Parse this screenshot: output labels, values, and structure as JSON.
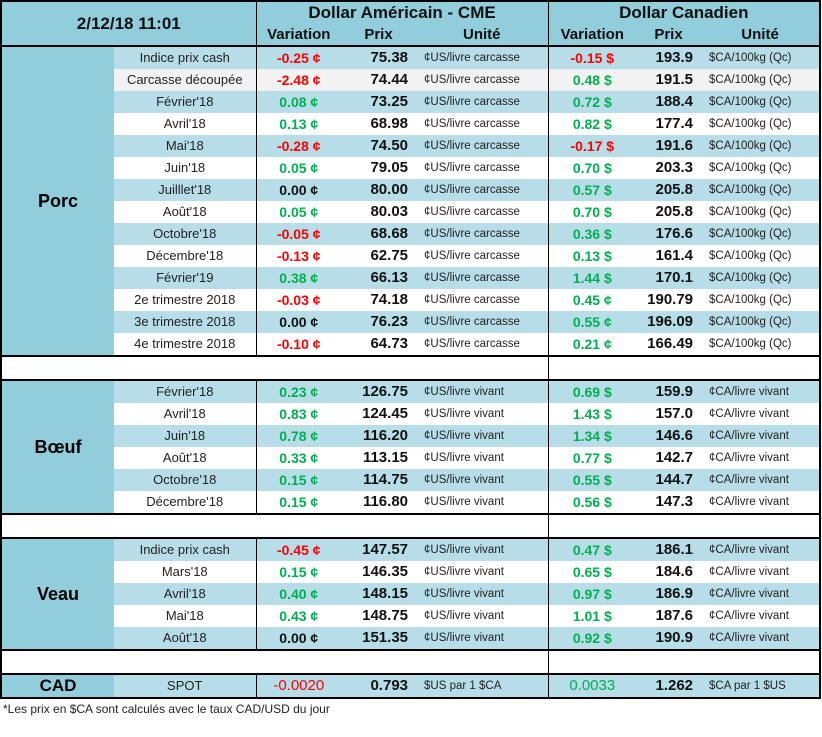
{
  "header": {
    "datetime": "2/12/18 11:01",
    "usd_title": "Dollar Américain - CME",
    "cad_title": "Dollar Canadien",
    "col_variation": "Variation",
    "col_prix": "Prix",
    "col_unite": "Unité"
  },
  "colors": {
    "header": "#92cddc",
    "row_light": "#b7dee8",
    "negative": "#ff0000",
    "positive": "#00b050"
  },
  "groups": [
    {
      "name": "Porc",
      "rows": [
        {
          "label": "Indice prix cash",
          "usd_var": "-0.25 ¢",
          "usd_prix": "75.38",
          "usd_unit": "¢US/livre carcasse",
          "cad_var": "-0.15 $",
          "cad_prix": "193.9",
          "cad_unit": "$CA/100kg (Qc)"
        },
        {
          "label": "Carcasse découpée",
          "usd_var": "-2.48 ¢",
          "usd_prix": "74.44",
          "usd_unit": "¢US/livre carcasse",
          "cad_var": "0.48 $",
          "cad_prix": "191.5",
          "cad_unit": "$CA/100kg (Qc)"
        },
        {
          "label": "Février'18",
          "usd_var": "0.08 ¢",
          "usd_prix": "73.25",
          "usd_unit": "¢US/livre carcasse",
          "cad_var": "0.72 $",
          "cad_prix": "188.4",
          "cad_unit": "$CA/100kg (Qc)"
        },
        {
          "label": "Avril'18",
          "usd_var": "0.13 ¢",
          "usd_prix": "68.98",
          "usd_unit": "¢US/livre carcasse",
          "cad_var": "0.82 $",
          "cad_prix": "177.4",
          "cad_unit": "$CA/100kg (Qc)"
        },
        {
          "label": "Mai'18",
          "usd_var": "-0.28 ¢",
          "usd_prix": "74.50",
          "usd_unit": "¢US/livre carcasse",
          "cad_var": "-0.17 $",
          "cad_prix": "191.6",
          "cad_unit": "$CA/100kg (Qc)"
        },
        {
          "label": "Juin'18",
          "usd_var": "0.05 ¢",
          "usd_prix": "79.05",
          "usd_unit": "¢US/livre carcasse",
          "cad_var": "0.70 $",
          "cad_prix": "203.3",
          "cad_unit": "$CA/100kg (Qc)"
        },
        {
          "label": "Juilllet'18",
          "usd_var": "0.00 ¢",
          "usd_prix": "80.00",
          "usd_unit": "¢US/livre carcasse",
          "cad_var": "0.57 $",
          "cad_prix": "205.8",
          "cad_unit": "$CA/100kg (Qc)"
        },
        {
          "label": "Août'18",
          "usd_var": "0.05 ¢",
          "usd_prix": "80.03",
          "usd_unit": "¢US/livre carcasse",
          "cad_var": "0.70 $",
          "cad_prix": "205.8",
          "cad_unit": "$CA/100kg (Qc)"
        },
        {
          "label": "Octobre'18",
          "usd_var": "-0.05 ¢",
          "usd_prix": "68.68",
          "usd_unit": "¢US/livre carcasse",
          "cad_var": "0.36 $",
          "cad_prix": "176.6",
          "cad_unit": "$CA/100kg (Qc)"
        },
        {
          "label": "Décembre'18",
          "usd_var": "-0.13 ¢",
          "usd_prix": "62.75",
          "usd_unit": "¢US/livre carcasse",
          "cad_var": "0.13 $",
          "cad_prix": "161.4",
          "cad_unit": "$CA/100kg (Qc)"
        },
        {
          "label": "Février'19",
          "usd_var": "0.38 ¢",
          "usd_prix": "66.13",
          "usd_unit": "¢US/livre carcasse",
          "cad_var": "1.44 $",
          "cad_prix": "170.1",
          "cad_unit": "$CA/100kg (Qc)"
        },
        {
          "label": "2e trimestre 2018",
          "usd_var": "-0.03 ¢",
          "usd_prix": "74.18",
          "usd_unit": "¢US/livre carcasse",
          "cad_var": "0.45 ¢",
          "cad_prix": "190.79",
          "cad_unit": "$CA/100kg (Qc)"
        },
        {
          "label": "3e trimestre 2018",
          "usd_var": "0.00 ¢",
          "usd_prix": "76.23",
          "usd_unit": "¢US/livre carcasse",
          "cad_var": "0.55 ¢",
          "cad_prix": "196.09",
          "cad_unit": "$CA/100kg (Qc)"
        },
        {
          "label": "4e trimestre 2018",
          "usd_var": "-0.10 ¢",
          "usd_prix": "64.73",
          "usd_unit": "¢US/livre carcasse",
          "cad_var": "0.21 ¢",
          "cad_prix": "166.49",
          "cad_unit": "$CA/100kg (Qc)"
        }
      ]
    },
    {
      "name": "Bœuf",
      "rows": [
        {
          "label": "Février'18",
          "usd_var": "0.23 ¢",
          "usd_prix": "126.75",
          "usd_unit": "¢US/livre vivant",
          "cad_var": "0.69 $",
          "cad_prix": "159.9",
          "cad_unit": "¢CA/livre vivant"
        },
        {
          "label": "Avril'18",
          "usd_var": "0.83 ¢",
          "usd_prix": "124.45",
          "usd_unit": "¢US/livre vivant",
          "cad_var": "1.43 $",
          "cad_prix": "157.0",
          "cad_unit": "¢CA/livre vivant"
        },
        {
          "label": "Juin'18",
          "usd_var": "0.78 ¢",
          "usd_prix": "116.20",
          "usd_unit": "¢US/livre vivant",
          "cad_var": "1.34 $",
          "cad_prix": "146.6",
          "cad_unit": "¢CA/livre vivant"
        },
        {
          "label": "Août'18",
          "usd_var": "0.33 ¢",
          "usd_prix": "113.15",
          "usd_unit": "¢US/livre vivant",
          "cad_var": "0.77 $",
          "cad_prix": "142.7",
          "cad_unit": "¢CA/livre vivant"
        },
        {
          "label": "Octobre'18",
          "usd_var": "0.15 ¢",
          "usd_prix": "114.75",
          "usd_unit": "¢US/livre vivant",
          "cad_var": "0.55 $",
          "cad_prix": "144.7",
          "cad_unit": "¢CA/livre vivant"
        },
        {
          "label": "Décembre'18",
          "usd_var": "0.15 ¢",
          "usd_prix": "116.80",
          "usd_unit": "¢US/livre vivant",
          "cad_var": "0.56 $",
          "cad_prix": "147.3",
          "cad_unit": "¢CA/livre vivant"
        }
      ]
    },
    {
      "name": "Veau",
      "rows": [
        {
          "label": "Indice prix cash",
          "usd_var": "-0.45 ¢",
          "usd_prix": "147.57",
          "usd_unit": "¢US/livre vivant",
          "cad_var": "0.47 $",
          "cad_prix": "186.1",
          "cad_unit": "¢CA/livre vivant"
        },
        {
          "label": "Mars'18",
          "usd_var": "0.15 ¢",
          "usd_prix": "146.35",
          "usd_unit": "¢US/livre vivant",
          "cad_var": "0.65 $",
          "cad_prix": "184.6",
          "cad_unit": "¢CA/livre vivant"
        },
        {
          "label": "Avril'18",
          "usd_var": "0.40 ¢",
          "usd_prix": "148.15",
          "usd_unit": "¢US/livre vivant",
          "cad_var": "0.97 $",
          "cad_prix": "186.9",
          "cad_unit": "¢CA/livre vivant"
        },
        {
          "label": "Mai'18",
          "usd_var": "0.43 ¢",
          "usd_prix": "148.75",
          "usd_unit": "¢US/livre vivant",
          "cad_var": "1.01 $",
          "cad_prix": "187.6",
          "cad_unit": "¢CA/livre vivant"
        },
        {
          "label": "Août'18",
          "usd_var": "0.00 ¢",
          "usd_prix": "151.35",
          "usd_unit": "¢US/livre vivant",
          "cad_var": "0.92 $",
          "cad_prix": "190.9",
          "cad_unit": "¢CA/livre vivant"
        }
      ]
    }
  ],
  "cad": {
    "label": "CAD",
    "sub": "SPOT",
    "usd_var": "-0.0020",
    "usd_prix": "0.793",
    "usd_unit": "$US par 1 $CA",
    "cad_var": "0.0033",
    "cad_prix": "1.262",
    "cad_unit": "$CA par 1 $US"
  },
  "footnote": "*Les  prix en $CA sont calculés avec le taux CAD/USD du jour"
}
